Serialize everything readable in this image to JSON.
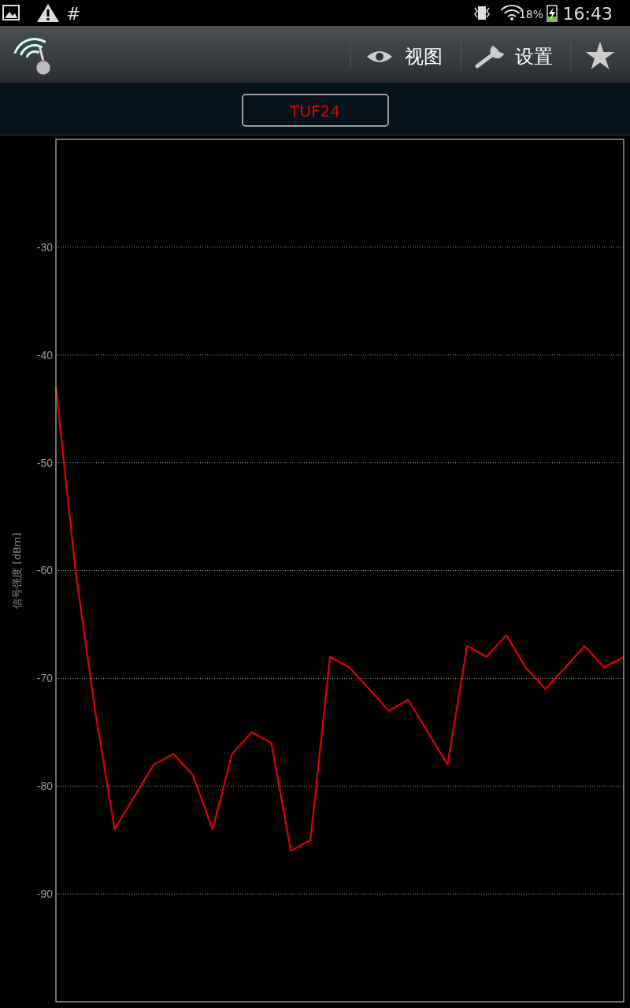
{
  "chart_data": {
    "type": "line",
    "title": "TUF24",
    "ylabel": "信号强度 [dBm]",
    "categories": [
      null,
      null,
      null,
      null,
      null,
      null,
      null,
      null,
      null,
      null,
      null,
      null,
      null,
      null,
      null,
      null,
      null,
      null,
      null,
      null,
      null,
      null,
      null,
      null,
      null,
      null,
      null,
      null,
      null,
      null
    ],
    "series": [
      {
        "color": "#e00000",
        "values": [
          -43,
          -60,
          -73,
          -84,
          -81,
          -78,
          -77,
          -79,
          -84,
          -77,
          -75,
          -76,
          -86,
          -85,
          -68,
          -69,
          -71,
          -73,
          -72,
          -75,
          -78,
          -67,
          -68,
          -66,
          -69,
          -71,
          -69,
          -67,
          -69,
          -68
        ]
      }
    ],
    "ylim": [
      -100,
      -20
    ],
    "yticks": [
      -30,
      -40,
      -50,
      -60,
      -70,
      -80,
      -90
    ],
    "grid": "y",
    "tick_labels": "y",
    "marker": "none",
    "line_style": "solid",
    "annotations": [
      "视图",
      "设置",
      "#",
      "18%",
      "16:43"
    ]
  }
}
